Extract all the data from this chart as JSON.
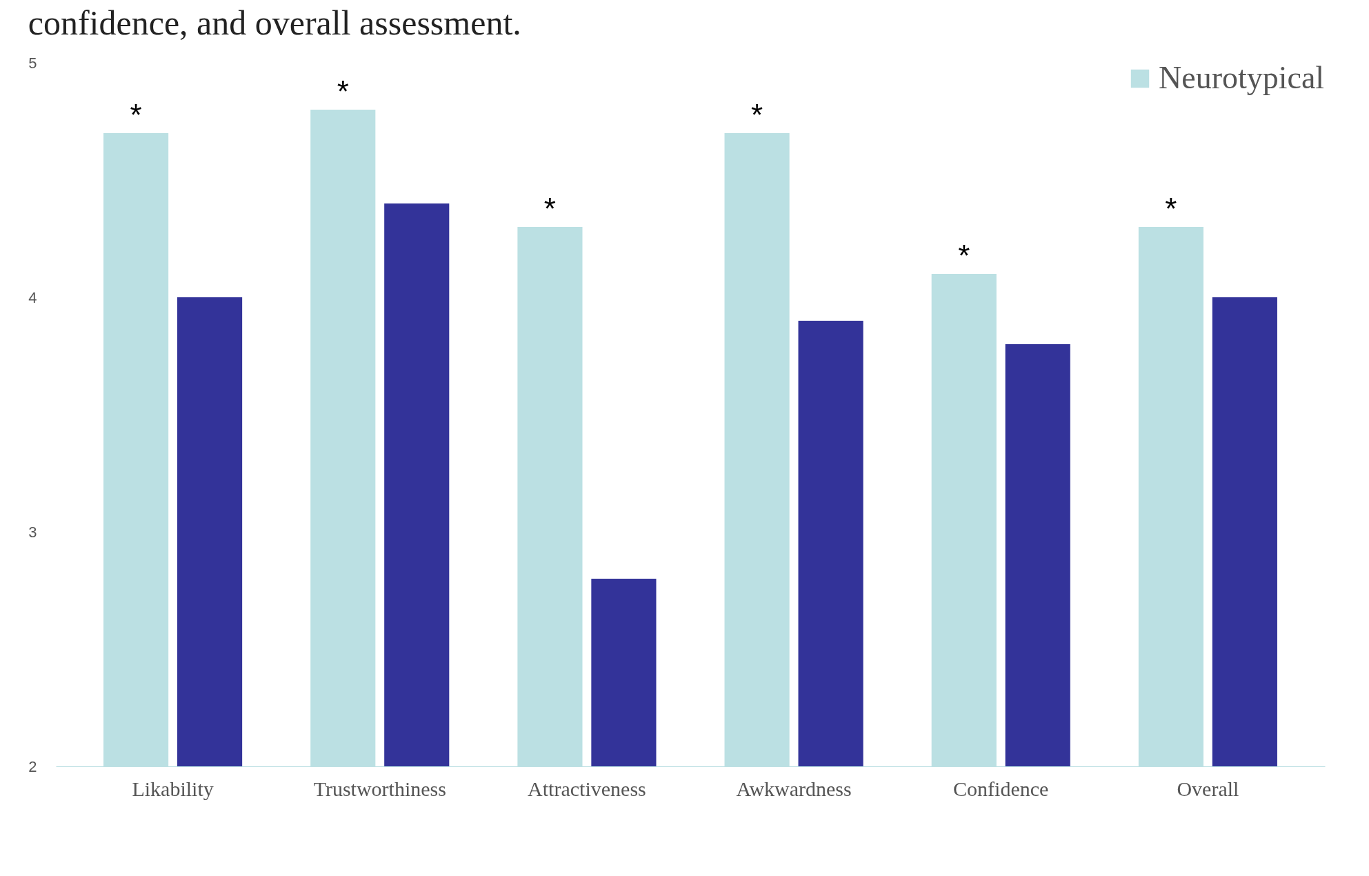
{
  "chart_data": {
    "type": "bar",
    "title": "confidence, and overall assessment.",
    "categories": [
      "Likability",
      "Trustworthiness",
      "Attractiveness",
      "Awkwardness",
      "Confidence",
      "Overall"
    ],
    "series": [
      {
        "name": "Neurotypical",
        "color": "#bbe0e3",
        "values": [
          4.7,
          4.8,
          4.3,
          4.7,
          4.1,
          4.3
        ]
      },
      {
        "color": "#333399",
        "values": [
          4.0,
          4.4,
          2.8,
          3.9,
          3.8,
          4.0
        ]
      }
    ],
    "ylim": [
      2,
      5
    ],
    "yticks": [
      2,
      3,
      4,
      5
    ],
    "grid": false,
    "legend": "top right",
    "annotations": [
      "*",
      "*",
      "*",
      "*",
      "*",
      "*"
    ]
  }
}
